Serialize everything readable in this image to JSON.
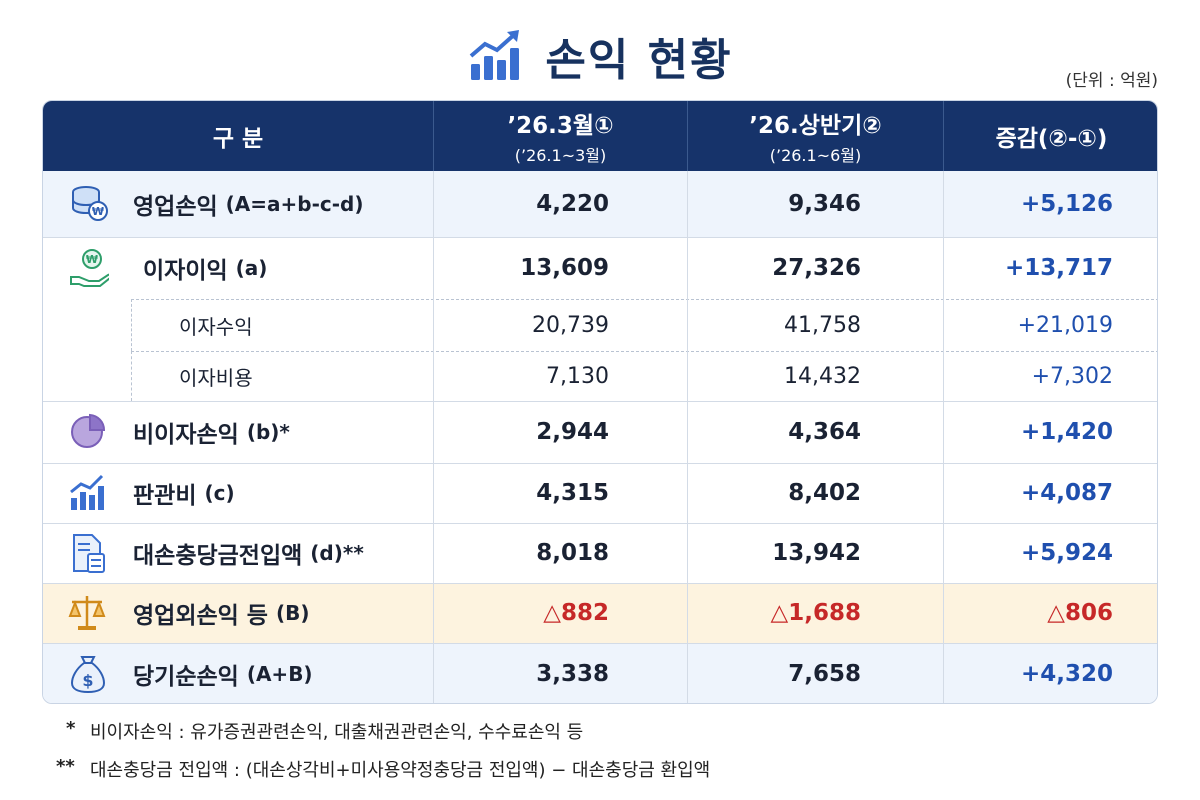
{
  "title": "손익 현황",
  "unit": "(단위 : 억원)",
  "table": {
    "header": [
      {
        "label": "구 분"
      },
      {
        "label": "’26.3월①",
        "sub": "(’26.1~3월)"
      },
      {
        "label": "’26.상반기②",
        "sub": "(’26.1~6월)"
      },
      {
        "label": "증감(②-①)"
      }
    ],
    "rows": [
      {
        "label": "영업손익",
        "note": "(A=a+b-c-d)",
        "cells": [
          "4,220",
          "9,346",
          "+5,126"
        ]
      },
      {
        "label": "이자이익",
        "note": "(a)",
        "cells": [
          "13,609",
          "27,326",
          "+13,717"
        ]
      },
      {
        "label": "이자수익",
        "cells": [
          "20,739",
          "41,758",
          "+21,019"
        ]
      },
      {
        "label": "이자비용",
        "cells": [
          "7,130",
          "14,432",
          "+7,302"
        ]
      },
      {
        "label": "비이자손익",
        "note": "(b)*",
        "cells": [
          "2,944",
          "4,364",
          "+1,420"
        ]
      },
      {
        "label": "판관비",
        "note": "(c)",
        "cells": [
          "4,315",
          "8,402",
          "+4,087"
        ]
      },
      {
        "label": "대손충당금전입액",
        "note": "(d)**",
        "cells": [
          "8,018",
          "13,942",
          "+5,924"
        ]
      },
      {
        "label": "영업외손익 등",
        "note": "(B)",
        "cells": [
          "△882",
          "△1,688",
          "△806"
        ]
      },
      {
        "label": "당기순손익",
        "note": "(A+B)",
        "cells": [
          "3,338",
          "7,658",
          "+4,320"
        ]
      }
    ]
  },
  "footnotes": [
    {
      "mark": "*",
      "text": "비이자손익 : 유가증권관련손익, 대출채권관련손익, 수수료손익 등"
    },
    {
      "mark": "**",
      "text": "대손충당금 전입액 : (대손상각비+미사용약정충당금 전입액) − 대손충당금 환입액"
    }
  ]
}
